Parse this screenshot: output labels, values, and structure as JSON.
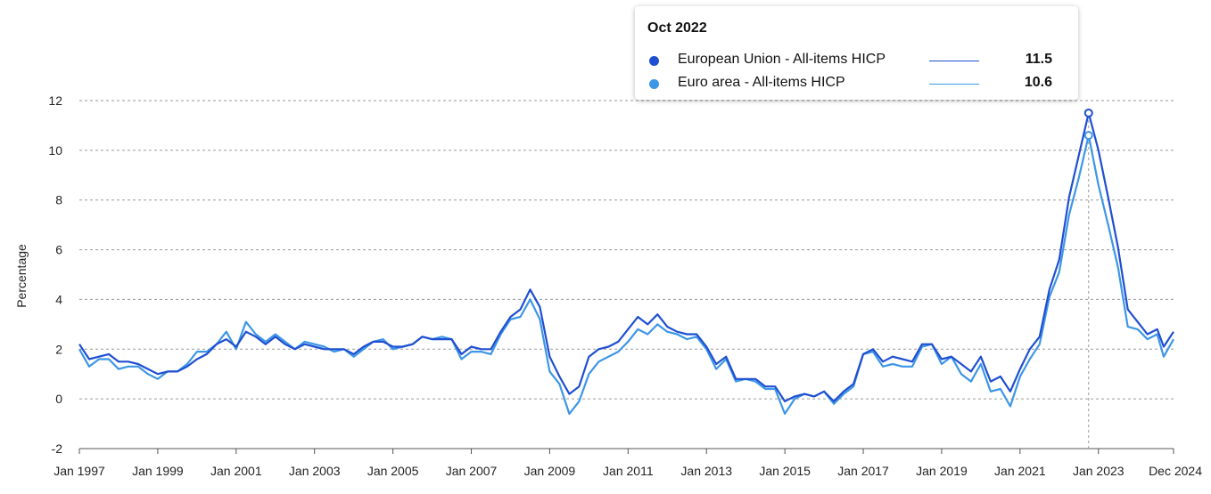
{
  "chart_data": {
    "type": "line",
    "ylabel": "Percentage",
    "ylim": [
      -2,
      12
    ],
    "yticks": [
      "-2",
      "0",
      "2",
      "4",
      "6",
      "8",
      "10",
      "12"
    ],
    "x_range": [
      "1997-01",
      "2024-12"
    ],
    "xticks": [
      {
        "date": "1997-01",
        "label": "Jan 1997"
      },
      {
        "date": "1999-01",
        "label": "Jan 1999"
      },
      {
        "date": "2001-01",
        "label": "Jan 2001"
      },
      {
        "date": "2003-01",
        "label": "Jan 2003"
      },
      {
        "date": "2005-01",
        "label": "Jan 2005"
      },
      {
        "date": "2007-01",
        "label": "Jan 2007"
      },
      {
        "date": "2009-01",
        "label": "Jan 2009"
      },
      {
        "date": "2011-01",
        "label": "Jan 2011"
      },
      {
        "date": "2013-01",
        "label": "Jan 2013"
      },
      {
        "date": "2015-01",
        "label": "Jan 2015"
      },
      {
        "date": "2017-01",
        "label": "Jan 2017"
      },
      {
        "date": "2019-01",
        "label": "Jan 2019"
      },
      {
        "date": "2021-01",
        "label": "Jan 2021"
      },
      {
        "date": "2023-01",
        "label": "Jan 2023"
      },
      {
        "date": "2024-12",
        "label": "Dec 2024"
      }
    ],
    "grid": "horizontal dashed",
    "series": [
      {
        "name": "European Union - All-items HICP",
        "color": "#1f4fd1",
        "points": [
          [
            "1997-01",
            2.2
          ],
          [
            "1997-04",
            1.6
          ],
          [
            "1997-07",
            1.7
          ],
          [
            "1997-10",
            1.8
          ],
          [
            "1998-01",
            1.5
          ],
          [
            "1998-04",
            1.5
          ],
          [
            "1998-07",
            1.4
          ],
          [
            "1998-10",
            1.2
          ],
          [
            "1999-01",
            1.0
          ],
          [
            "1999-04",
            1.1
          ],
          [
            "1999-07",
            1.1
          ],
          [
            "1999-10",
            1.3
          ],
          [
            "2000-01",
            1.6
          ],
          [
            "2000-04",
            1.8
          ],
          [
            "2000-07",
            2.2
          ],
          [
            "2000-10",
            2.4
          ],
          [
            "2001-01",
            2.1
          ],
          [
            "2001-04",
            2.7
          ],
          [
            "2001-07",
            2.5
          ],
          [
            "2001-10",
            2.2
          ],
          [
            "2002-01",
            2.5
          ],
          [
            "2002-04",
            2.2
          ],
          [
            "2002-07",
            2.0
          ],
          [
            "2002-10",
            2.2
          ],
          [
            "2003-01",
            2.1
          ],
          [
            "2003-04",
            2.0
          ],
          [
            "2003-07",
            2.0
          ],
          [
            "2003-10",
            2.0
          ],
          [
            "2004-01",
            1.8
          ],
          [
            "2004-04",
            2.1
          ],
          [
            "2004-07",
            2.3
          ],
          [
            "2004-10",
            2.3
          ],
          [
            "2005-01",
            2.1
          ],
          [
            "2005-04",
            2.1
          ],
          [
            "2005-07",
            2.2
          ],
          [
            "2005-10",
            2.5
          ],
          [
            "2006-01",
            2.4
          ],
          [
            "2006-04",
            2.4
          ],
          [
            "2006-07",
            2.4
          ],
          [
            "2006-10",
            1.8
          ],
          [
            "2007-01",
            2.1
          ],
          [
            "2007-04",
            2.0
          ],
          [
            "2007-07",
            2.0
          ],
          [
            "2007-10",
            2.7
          ],
          [
            "2008-01",
            3.3
          ],
          [
            "2008-04",
            3.6
          ],
          [
            "2008-07",
            4.4
          ],
          [
            "2008-10",
            3.7
          ],
          [
            "2009-01",
            1.7
          ],
          [
            "2009-04",
            0.9
          ],
          [
            "2009-07",
            0.2
          ],
          [
            "2009-10",
            0.5
          ],
          [
            "2010-01",
            1.7
          ],
          [
            "2010-04",
            2.0
          ],
          [
            "2010-07",
            2.1
          ],
          [
            "2010-10",
            2.3
          ],
          [
            "2011-01",
            2.8
          ],
          [
            "2011-04",
            3.3
          ],
          [
            "2011-07",
            3.0
          ],
          [
            "2011-10",
            3.4
          ],
          [
            "2012-01",
            2.9
          ],
          [
            "2012-04",
            2.7
          ],
          [
            "2012-07",
            2.6
          ],
          [
            "2012-10",
            2.6
          ],
          [
            "2013-01",
            2.1
          ],
          [
            "2013-04",
            1.4
          ],
          [
            "2013-07",
            1.7
          ],
          [
            "2013-10",
            0.8
          ],
          [
            "2014-01",
            0.8
          ],
          [
            "2014-04",
            0.8
          ],
          [
            "2014-07",
            0.5
          ],
          [
            "2014-10",
            0.5
          ],
          [
            "2015-01",
            -0.1
          ],
          [
            "2015-04",
            0.1
          ],
          [
            "2015-07",
            0.2
          ],
          [
            "2015-10",
            0.1
          ],
          [
            "2016-01",
            0.3
          ],
          [
            "2016-04",
            -0.1
          ],
          [
            "2016-07",
            0.3
          ],
          [
            "2016-10",
            0.6
          ],
          [
            "2017-01",
            1.8
          ],
          [
            "2017-04",
            2.0
          ],
          [
            "2017-07",
            1.5
          ],
          [
            "2017-10",
            1.7
          ],
          [
            "2018-01",
            1.6
          ],
          [
            "2018-04",
            1.5
          ],
          [
            "2018-07",
            2.2
          ],
          [
            "2018-10",
            2.2
          ],
          [
            "2019-01",
            1.6
          ],
          [
            "2019-04",
            1.7
          ],
          [
            "2019-07",
            1.4
          ],
          [
            "2019-10",
            1.1
          ],
          [
            "2020-01",
            1.7
          ],
          [
            "2020-04",
            0.7
          ],
          [
            "2020-07",
            0.9
          ],
          [
            "2020-10",
            0.3
          ],
          [
            "2021-01",
            1.2
          ],
          [
            "2021-04",
            2.0
          ],
          [
            "2021-07",
            2.5
          ],
          [
            "2021-10",
            4.4
          ],
          [
            "2022-01",
            5.6
          ],
          [
            "2022-04",
            8.1
          ],
          [
            "2022-07",
            9.8
          ],
          [
            "2022-10",
            11.5
          ],
          [
            "2023-01",
            10.0
          ],
          [
            "2023-04",
            8.1
          ],
          [
            "2023-07",
            6.1
          ],
          [
            "2023-10",
            3.6
          ],
          [
            "2024-01",
            3.1
          ],
          [
            "2024-04",
            2.6
          ],
          [
            "2024-07",
            2.8
          ],
          [
            "2024-09",
            2.1
          ],
          [
            "2024-12",
            2.7
          ]
        ]
      },
      {
        "name": "Euro area - All-items HICP",
        "color": "#3d96e6",
        "points": [
          [
            "1997-01",
            2.0
          ],
          [
            "1997-04",
            1.3
          ],
          [
            "1997-07",
            1.6
          ],
          [
            "1997-10",
            1.6
          ],
          [
            "1998-01",
            1.2
          ],
          [
            "1998-04",
            1.3
          ],
          [
            "1998-07",
            1.3
          ],
          [
            "1998-10",
            1.0
          ],
          [
            "1999-01",
            0.8
          ],
          [
            "1999-04",
            1.1
          ],
          [
            "1999-07",
            1.1
          ],
          [
            "1999-10",
            1.4
          ],
          [
            "2000-01",
            1.9
          ],
          [
            "2000-04",
            1.9
          ],
          [
            "2000-07",
            2.2
          ],
          [
            "2000-10",
            2.7
          ],
          [
            "2001-01",
            2.0
          ],
          [
            "2001-04",
            3.1
          ],
          [
            "2001-07",
            2.6
          ],
          [
            "2001-10",
            2.3
          ],
          [
            "2002-01",
            2.6
          ],
          [
            "2002-04",
            2.3
          ],
          [
            "2002-07",
            2.0
          ],
          [
            "2002-10",
            2.3
          ],
          [
            "2003-01",
            2.2
          ],
          [
            "2003-04",
            2.1
          ],
          [
            "2003-07",
            1.9
          ],
          [
            "2003-10",
            2.0
          ],
          [
            "2004-01",
            1.7
          ],
          [
            "2004-04",
            2.0
          ],
          [
            "2004-07",
            2.3
          ],
          [
            "2004-10",
            2.4
          ],
          [
            "2005-01",
            2.0
          ],
          [
            "2005-04",
            2.1
          ],
          [
            "2005-07",
            2.2
          ],
          [
            "2005-10",
            2.5
          ],
          [
            "2006-01",
            2.4
          ],
          [
            "2006-04",
            2.5
          ],
          [
            "2006-07",
            2.4
          ],
          [
            "2006-10",
            1.6
          ],
          [
            "2007-01",
            1.9
          ],
          [
            "2007-04",
            1.9
          ],
          [
            "2007-07",
            1.8
          ],
          [
            "2007-10",
            2.6
          ],
          [
            "2008-01",
            3.2
          ],
          [
            "2008-04",
            3.3
          ],
          [
            "2008-07",
            4.0
          ],
          [
            "2008-10",
            3.2
          ],
          [
            "2009-01",
            1.1
          ],
          [
            "2009-04",
            0.6
          ],
          [
            "2009-07",
            -0.6
          ],
          [
            "2009-10",
            -0.1
          ],
          [
            "2010-01",
            1.0
          ],
          [
            "2010-04",
            1.5
          ],
          [
            "2010-07",
            1.7
          ],
          [
            "2010-10",
            1.9
          ],
          [
            "2011-01",
            2.3
          ],
          [
            "2011-04",
            2.8
          ],
          [
            "2011-07",
            2.6
          ],
          [
            "2011-10",
            3.0
          ],
          [
            "2012-01",
            2.7
          ],
          [
            "2012-04",
            2.6
          ],
          [
            "2012-07",
            2.4
          ],
          [
            "2012-10",
            2.5
          ],
          [
            "2013-01",
            2.0
          ],
          [
            "2013-04",
            1.2
          ],
          [
            "2013-07",
            1.6
          ],
          [
            "2013-10",
            0.7
          ],
          [
            "2014-01",
            0.8
          ],
          [
            "2014-04",
            0.7
          ],
          [
            "2014-07",
            0.4
          ],
          [
            "2014-10",
            0.4
          ],
          [
            "2015-01",
            -0.6
          ],
          [
            "2015-04",
            0.0
          ],
          [
            "2015-07",
            0.2
          ],
          [
            "2015-10",
            0.1
          ],
          [
            "2016-01",
            0.3
          ],
          [
            "2016-04",
            -0.2
          ],
          [
            "2016-07",
            0.2
          ],
          [
            "2016-10",
            0.5
          ],
          [
            "2017-01",
            1.8
          ],
          [
            "2017-04",
            1.9
          ],
          [
            "2017-07",
            1.3
          ],
          [
            "2017-10",
            1.4
          ],
          [
            "2018-01",
            1.3
          ],
          [
            "2018-04",
            1.3
          ],
          [
            "2018-07",
            2.1
          ],
          [
            "2018-10",
            2.2
          ],
          [
            "2019-01",
            1.4
          ],
          [
            "2019-04",
            1.7
          ],
          [
            "2019-07",
            1.0
          ],
          [
            "2019-10",
            0.7
          ],
          [
            "2020-01",
            1.4
          ],
          [
            "2020-04",
            0.3
          ],
          [
            "2020-07",
            0.4
          ],
          [
            "2020-10",
            -0.3
          ],
          [
            "2021-01",
            0.9
          ],
          [
            "2021-04",
            1.6
          ],
          [
            "2021-07",
            2.2
          ],
          [
            "2021-10",
            4.1
          ],
          [
            "2022-01",
            5.1
          ],
          [
            "2022-04",
            7.4
          ],
          [
            "2022-07",
            8.9
          ],
          [
            "2022-10",
            10.6
          ],
          [
            "2023-01",
            8.6
          ],
          [
            "2023-04",
            7.0
          ],
          [
            "2023-07",
            5.3
          ],
          [
            "2023-10",
            2.9
          ],
          [
            "2024-01",
            2.8
          ],
          [
            "2024-04",
            2.4
          ],
          [
            "2024-07",
            2.6
          ],
          [
            "2024-09",
            1.7
          ],
          [
            "2024-12",
            2.4
          ]
        ]
      }
    ],
    "highlight": "2022-10"
  },
  "tooltip": {
    "title": "Oct 2022",
    "rows": [
      {
        "label": "European Union - All-items HICP",
        "value": "11.5",
        "color": "#1f4fd1"
      },
      {
        "label": "Euro area - All-items HICP",
        "value": "10.6",
        "color": "#3d96e6"
      }
    ]
  }
}
